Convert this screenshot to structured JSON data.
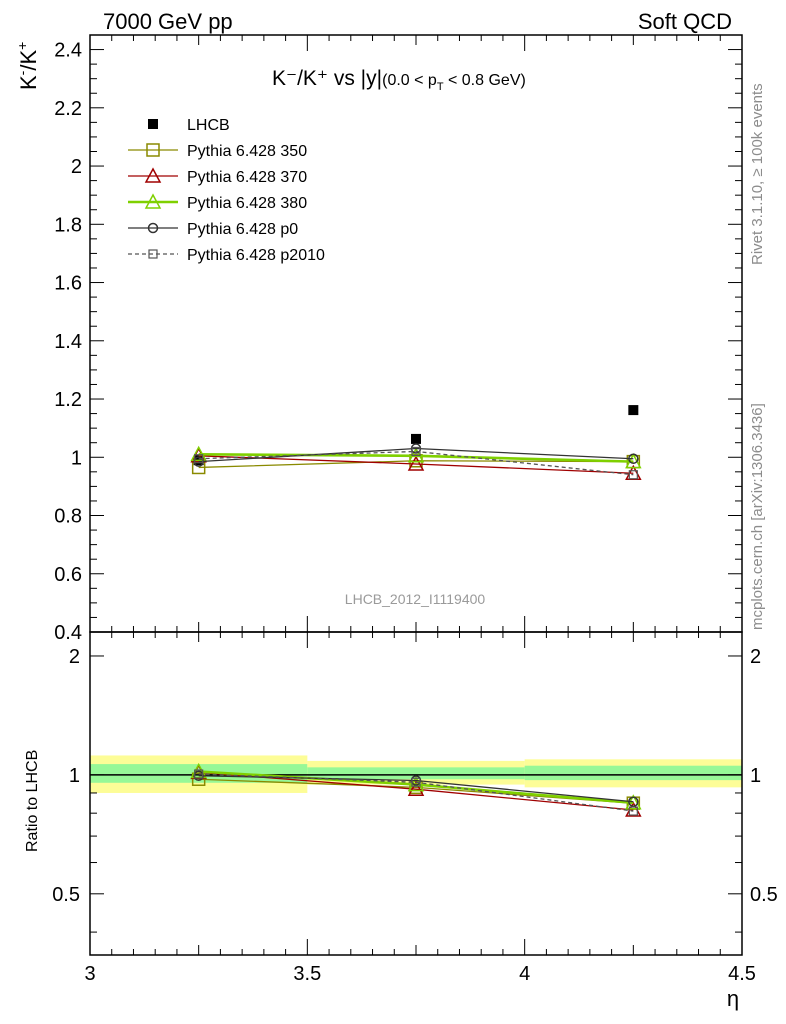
{
  "header": {
    "left": "7000 GeV pp",
    "right": "Soft QCD"
  },
  "side_labels": {
    "rivet": "Rivet 3.1.10, ≥ 100k events",
    "mcplots": "mcplots.cern.ch [arXiv:1306.3436]"
  },
  "watermark": "LHCB_2012_I1119400",
  "title": {
    "main": "K⁻/K⁺ vs |y|",
    "cut_open": "(0.0 < p",
    "cut_sub": "T",
    "cut_close": " < 0.8 GeV)"
  },
  "ylabel_main": {
    "k": "K",
    "sup1": "-",
    "slash": "/K",
    "sup2": "+"
  },
  "ratio_ylabel": "Ratio to LHCB",
  "xlabel": "η",
  "chart_data": [
    {
      "type": "line",
      "panel": "main",
      "xlim": [
        3.0,
        4.5
      ],
      "ylim": [
        0.4,
        2.45
      ],
      "yticks": [
        0.4,
        0.6,
        0.8,
        1.0,
        1.2,
        1.4,
        1.6,
        1.8,
        2.0,
        2.2,
        2.4
      ],
      "ytick_labels": [
        "0.4",
        "0.6",
        "0.8",
        "1",
        "1.2",
        "1.4",
        "1.6",
        "1.8",
        "2",
        "2.2",
        "2.4"
      ],
      "legend_position": "top-left",
      "x": [
        3.25,
        3.75,
        4.25
      ],
      "series": [
        {
          "name": "LHCB",
          "values": [
            0.99,
            1.063,
            1.162
          ],
          "color": "#000000",
          "marker": "filled-square",
          "line": "none"
        },
        {
          "name": "Pythia 6.428 350",
          "values": [
            0.965,
            0.988,
            0.985
          ],
          "color": "#8a8a00",
          "marker": "open-square",
          "line": "solid"
        },
        {
          "name": "Pythia 6.428 370",
          "values": [
            1.005,
            0.977,
            0.945
          ],
          "color": "#a00000",
          "marker": "open-triangle",
          "line": "solid"
        },
        {
          "name": "Pythia 6.428 380",
          "values": [
            1.01,
            1.005,
            0.985
          ],
          "color": "#7fd000",
          "marker": "open-triangle",
          "line": "solid-thick"
        },
        {
          "name": "Pythia 6.428 p0",
          "values": [
            0.985,
            1.03,
            0.995
          ],
          "color": "#333333",
          "marker": "open-circle",
          "line": "solid"
        },
        {
          "name": "Pythia 6.428 p2010",
          "values": [
            0.995,
            1.02,
            0.94
          ],
          "color": "#555555",
          "marker": "small-open-square",
          "line": "dashed"
        }
      ]
    },
    {
      "type": "line",
      "panel": "ratio",
      "xlim": [
        3.0,
        4.5
      ],
      "ylim": [
        0.35,
        2.3
      ],
      "yscale": "log",
      "yticks": [
        0.5,
        1.0,
        2.0
      ],
      "ytick_labels": [
        "0.5",
        "1",
        "2"
      ],
      "xticks": [
        3.0,
        3.5,
        4.0,
        4.5
      ],
      "xtick_labels": [
        "3",
        "3.5",
        "4",
        "4.5"
      ],
      "reference_line": 1.0,
      "bands": [
        {
          "x": [
            3.0,
            3.5
          ],
          "yellow": [
            0.9,
            1.12
          ],
          "green": [
            0.955,
            1.065
          ]
        },
        {
          "x": [
            3.5,
            4.0
          ],
          "yellow": [
            0.945,
            1.085
          ],
          "green": [
            0.975,
            1.045
          ]
        },
        {
          "x": [
            4.0,
            4.5
          ],
          "yellow": [
            0.93,
            1.095
          ],
          "green": [
            0.97,
            1.055
          ]
        }
      ],
      "band_colors": {
        "yellow": "#fdfd97",
        "green": "#97f897"
      },
      "x": [
        3.25,
        3.75,
        4.25
      ],
      "series": [
        {
          "name": "Pythia 6.428 350",
          "values": [
            0.975,
            0.93,
            0.848
          ],
          "color": "#8a8a00",
          "marker": "open-square",
          "line": "solid"
        },
        {
          "name": "Pythia 6.428 370",
          "values": [
            1.015,
            0.92,
            0.815
          ],
          "color": "#a00000",
          "marker": "open-triangle",
          "line": "solid"
        },
        {
          "name": "Pythia 6.428 380",
          "values": [
            1.02,
            0.945,
            0.85
          ],
          "color": "#7fd000",
          "marker": "open-triangle",
          "line": "solid-thick"
        },
        {
          "name": "Pythia 6.428 p0",
          "values": [
            0.995,
            0.968,
            0.855
          ],
          "color": "#333333",
          "marker": "open-circle",
          "line": "solid"
        },
        {
          "name": "Pythia 6.428 p2010",
          "values": [
            1.005,
            0.958,
            0.81
          ],
          "color": "#555555",
          "marker": "small-open-square",
          "line": "dashed"
        }
      ]
    }
  ]
}
